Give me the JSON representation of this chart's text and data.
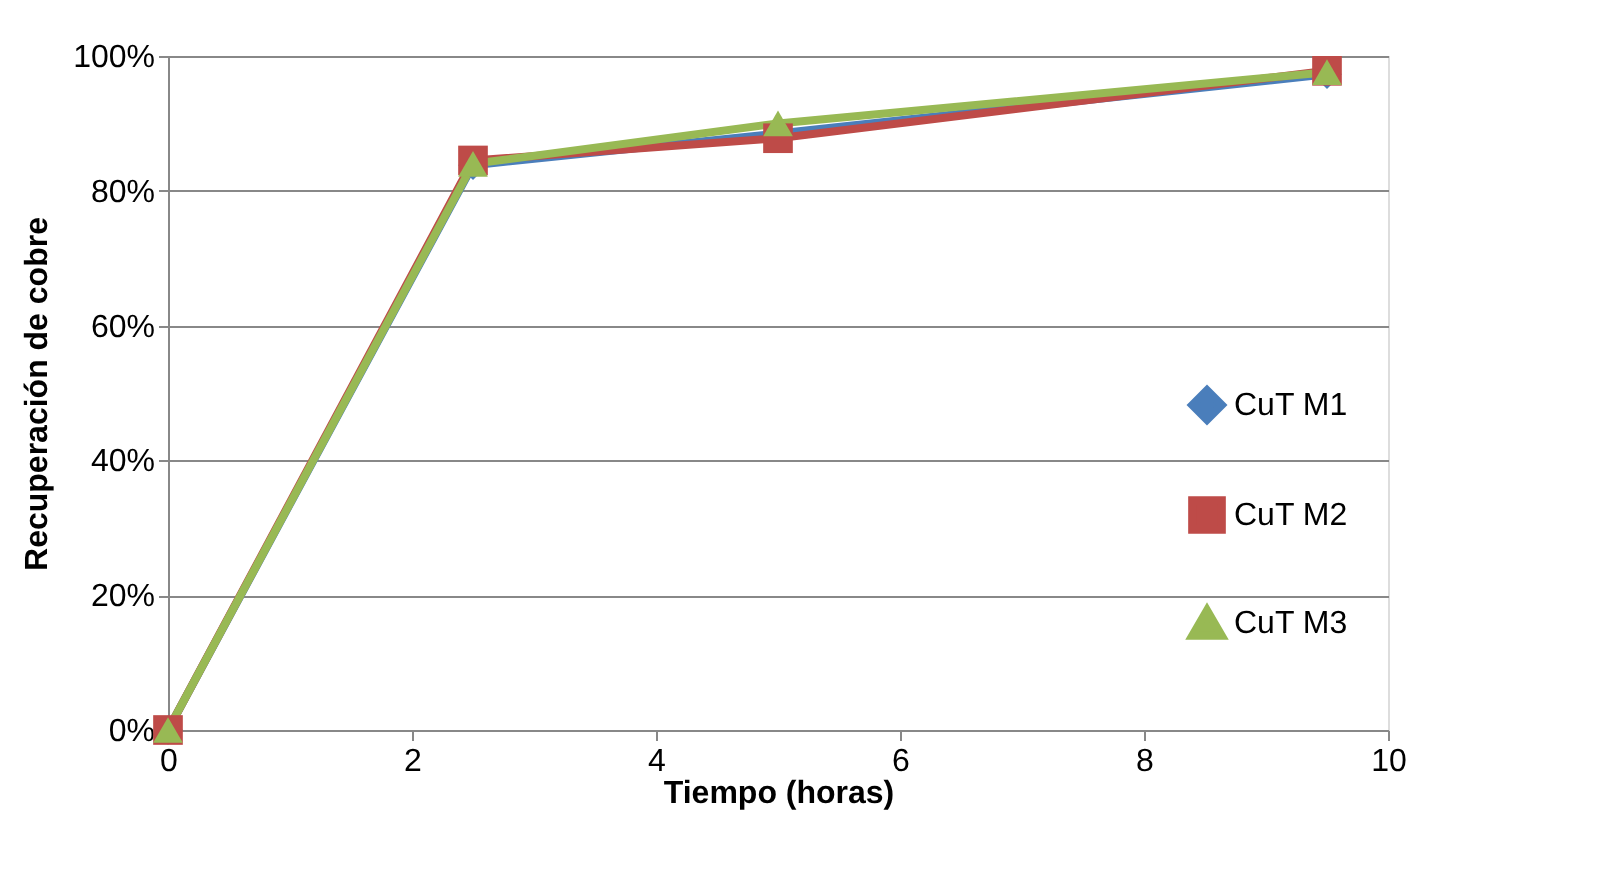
{
  "chart_data": {
    "type": "line",
    "xlabel": "Tiempo (horas)",
    "ylabel": "Recuperación de cobre",
    "x": [
      0,
      2.5,
      5,
      9.5
    ],
    "series": [
      {
        "name": "CuT M1",
        "color": "#4a7ebb",
        "values": [
          0,
          83.8,
          88.5,
          97.3
        ],
        "marker": "diamond"
      },
      {
        "name": "CuT M2",
        "color": "#be4b48",
        "values": [
          0,
          84.5,
          87.8,
          97.8
        ],
        "marker": "square"
      },
      {
        "name": "CuT M3",
        "color": "#98b954",
        "values": [
          0,
          84,
          90,
          97.6
        ],
        "marker": "triangle"
      }
    ],
    "xlim": [
      0,
      10
    ],
    "xticks": [
      0,
      2,
      4,
      6,
      8,
      10
    ],
    "ylim": [
      0,
      100
    ],
    "yticks": [
      {
        "value": 0,
        "label": "0%"
      },
      {
        "value": 20,
        "label": "20%"
      },
      {
        "value": 40,
        "label": "40%"
      },
      {
        "value": 60,
        "label": "60%"
      },
      {
        "value": 80,
        "label": "80%"
      },
      {
        "value": 100,
        "label": "100%"
      }
    ],
    "grid": "y",
    "legend": "right",
    "line_style": "solid"
  }
}
